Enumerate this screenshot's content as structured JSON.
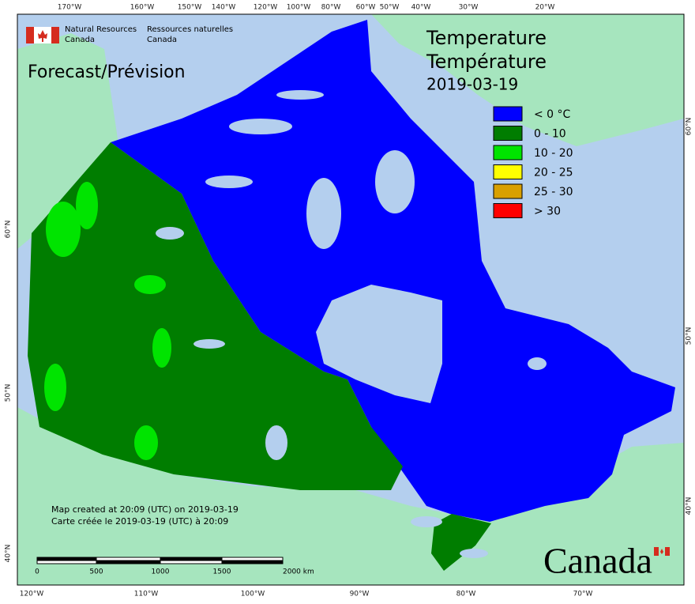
{
  "header": {
    "dept_en": [
      "Natural Resources",
      "Canada"
    ],
    "dept_fr": [
      "Ressources naturelles",
      "Canada"
    ]
  },
  "product": "Forecast/Prévision",
  "map_title": [
    "Temperature",
    "Température",
    "2019-03-19"
  ],
  "legend": [
    {
      "label": "< 0 °C",
      "color": "#0000ff"
    },
    {
      "label": "0 - 10",
      "color": "#007d00"
    },
    {
      "label": "10 - 20",
      "color": "#00e400"
    },
    {
      "label": "20 - 25",
      "color": "#ffff00"
    },
    {
      "label": "25 - 30",
      "color": "#d9a000"
    },
    {
      "label": "> 30",
      "color": "#ff0000"
    }
  ],
  "graticule": {
    "top": [
      "170°W",
      "160°W",
      "150°W",
      "140°W",
      "120°W",
      "100°W",
      "80°W",
      "60°W",
      "50°W",
      "40°W",
      "30°W",
      "20°W"
    ],
    "bottom": [
      "120°W",
      "110°W",
      "100°W",
      "90°W",
      "80°W",
      "70°W"
    ],
    "left": [
      "60°N",
      "50°N",
      "40°N"
    ],
    "right": [
      "60°N",
      "50°N",
      "40°N"
    ]
  },
  "credits": [
    "Map created at 20:09 (UTC) on 2019-03-19",
    "Carte créée le 2019-03-19 (UTC) à 20:09"
  ],
  "scale_bar": [
    "0",
    "500",
    "1000",
    "1500",
    "2000  km"
  ],
  "wordmark": "Canada"
}
